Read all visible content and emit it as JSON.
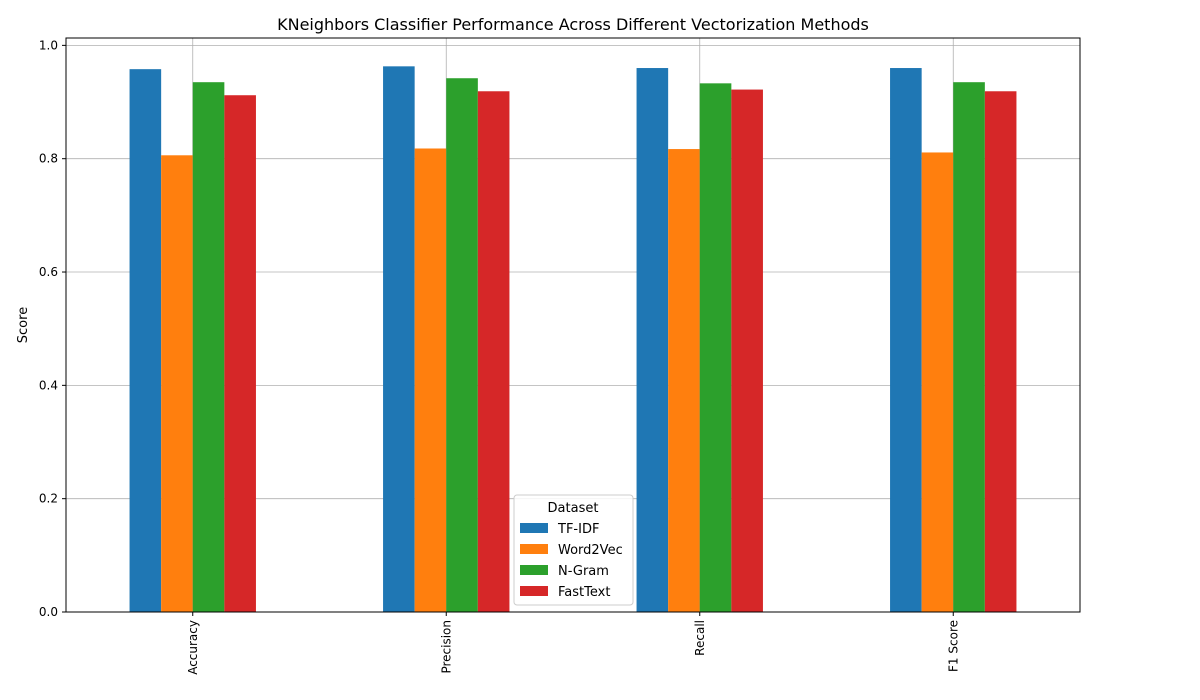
{
  "chart_data": {
    "type": "bar",
    "title": "KNeighbors Classifier Performance Across Different Vectorization Methods",
    "xlabel": "",
    "ylabel": "Score",
    "categories": [
      "Accuracy",
      "Precision",
      "Recall",
      "F1 Score"
    ],
    "series": [
      {
        "name": "TF-IDF",
        "color": "#1f77b4",
        "values": [
          0.958,
          0.963,
          0.96,
          0.96
        ]
      },
      {
        "name": "Word2Vec",
        "color": "#ff7f0e",
        "values": [
          0.806,
          0.818,
          0.817,
          0.811
        ]
      },
      {
        "name": "N-Gram",
        "color": "#2ca02c",
        "values": [
          0.935,
          0.942,
          0.933,
          0.935
        ]
      },
      {
        "name": "FastText",
        "color": "#d62728",
        "values": [
          0.912,
          0.919,
          0.922,
          0.919
        ]
      }
    ],
    "ylim": [
      0,
      1.0
    ],
    "yticks": [
      "0.0",
      "0.2",
      "0.4",
      "0.6",
      "0.8",
      "1.0"
    ],
    "grid": true,
    "legend": {
      "title": "Dataset",
      "placement": "lower-center"
    }
  }
}
